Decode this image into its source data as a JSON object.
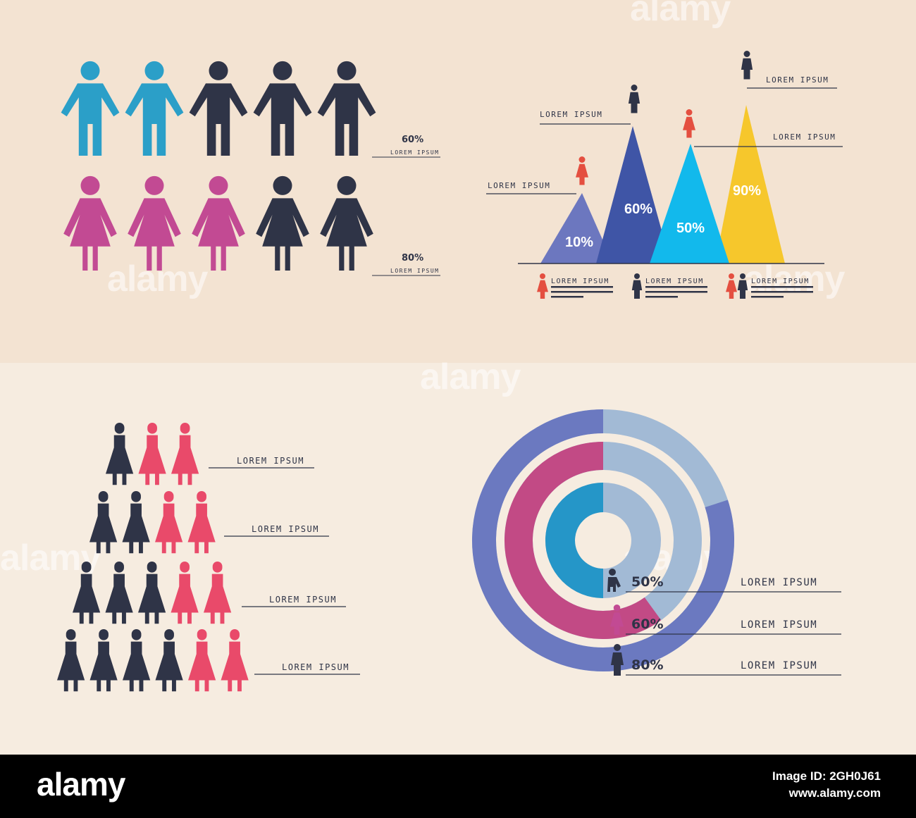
{
  "colors": {
    "top_bg": "#f3e3d2",
    "bottom_bg": "#f6ece0",
    "dark": "#2f3447",
    "male": "#2b9fc8",
    "female": "#c24a93",
    "coral": "#e94a6a",
    "red": "#e44f40"
  },
  "watermark": "alamy",
  "footer": {
    "logo": "alamy",
    "image_id": "Image ID: 2GH0J61",
    "url": "www.alamy.com"
  },
  "chart_data": [
    {
      "type": "pictogram",
      "rows": [
        {
          "icon": "male",
          "total": 5,
          "highlighted": 2,
          "value_label": "60%",
          "caption": "LOREM IPSUM"
        },
        {
          "icon": "female",
          "total": 5,
          "highlighted": 3,
          "value_label": "80%",
          "caption": "LOREM IPSUM"
        }
      ]
    },
    {
      "type": "bar",
      "shape": "triangle",
      "values": [
        10,
        60,
        50,
        90
      ],
      "value_labels": [
        "10%",
        "60%",
        "50%",
        "90%"
      ],
      "colors": [
        "#6c77bf",
        "#3f55a6",
        "#12b9ec",
        "#f6c72c"
      ],
      "captions": [
        "LOREM IPSUM",
        "LOREM IPSUM",
        "LOREM IPSUM",
        "LOREM IPSUM"
      ],
      "legend": [
        "LOREM IPSUM",
        "LOREM IPSUM",
        "LOREM IPSUM"
      ]
    },
    {
      "type": "pictogram",
      "rows": [
        {
          "total": 3,
          "dark": 1,
          "highlighted": 2,
          "caption": "LOREM IPSUM"
        },
        {
          "total": 4,
          "dark": 2,
          "highlighted": 2,
          "caption": "LOREM IPSUM"
        },
        {
          "total": 5,
          "dark": 3,
          "highlighted": 2,
          "caption": "LOREM IPSUM"
        },
        {
          "total": 6,
          "dark": 4,
          "highlighted": 2,
          "caption": "LOREM IPSUM"
        }
      ]
    },
    {
      "type": "radial_bar",
      "rings": [
        {
          "value": 50,
          "label": "50%",
          "caption": "LOREM IPSUM",
          "icon": "child",
          "color": "#2596c8",
          "track": "#a2bad5"
        },
        {
          "value": 60,
          "label": "60%",
          "caption": "LOREM IPSUM",
          "icon": "female",
          "color": "#c24a85",
          "track": "#a2bad5"
        },
        {
          "value": 80,
          "label": "80%",
          "caption": "LOREM IPSUM",
          "icon": "male",
          "color": "#6b79c0",
          "track": "#a2bad5"
        }
      ]
    }
  ]
}
